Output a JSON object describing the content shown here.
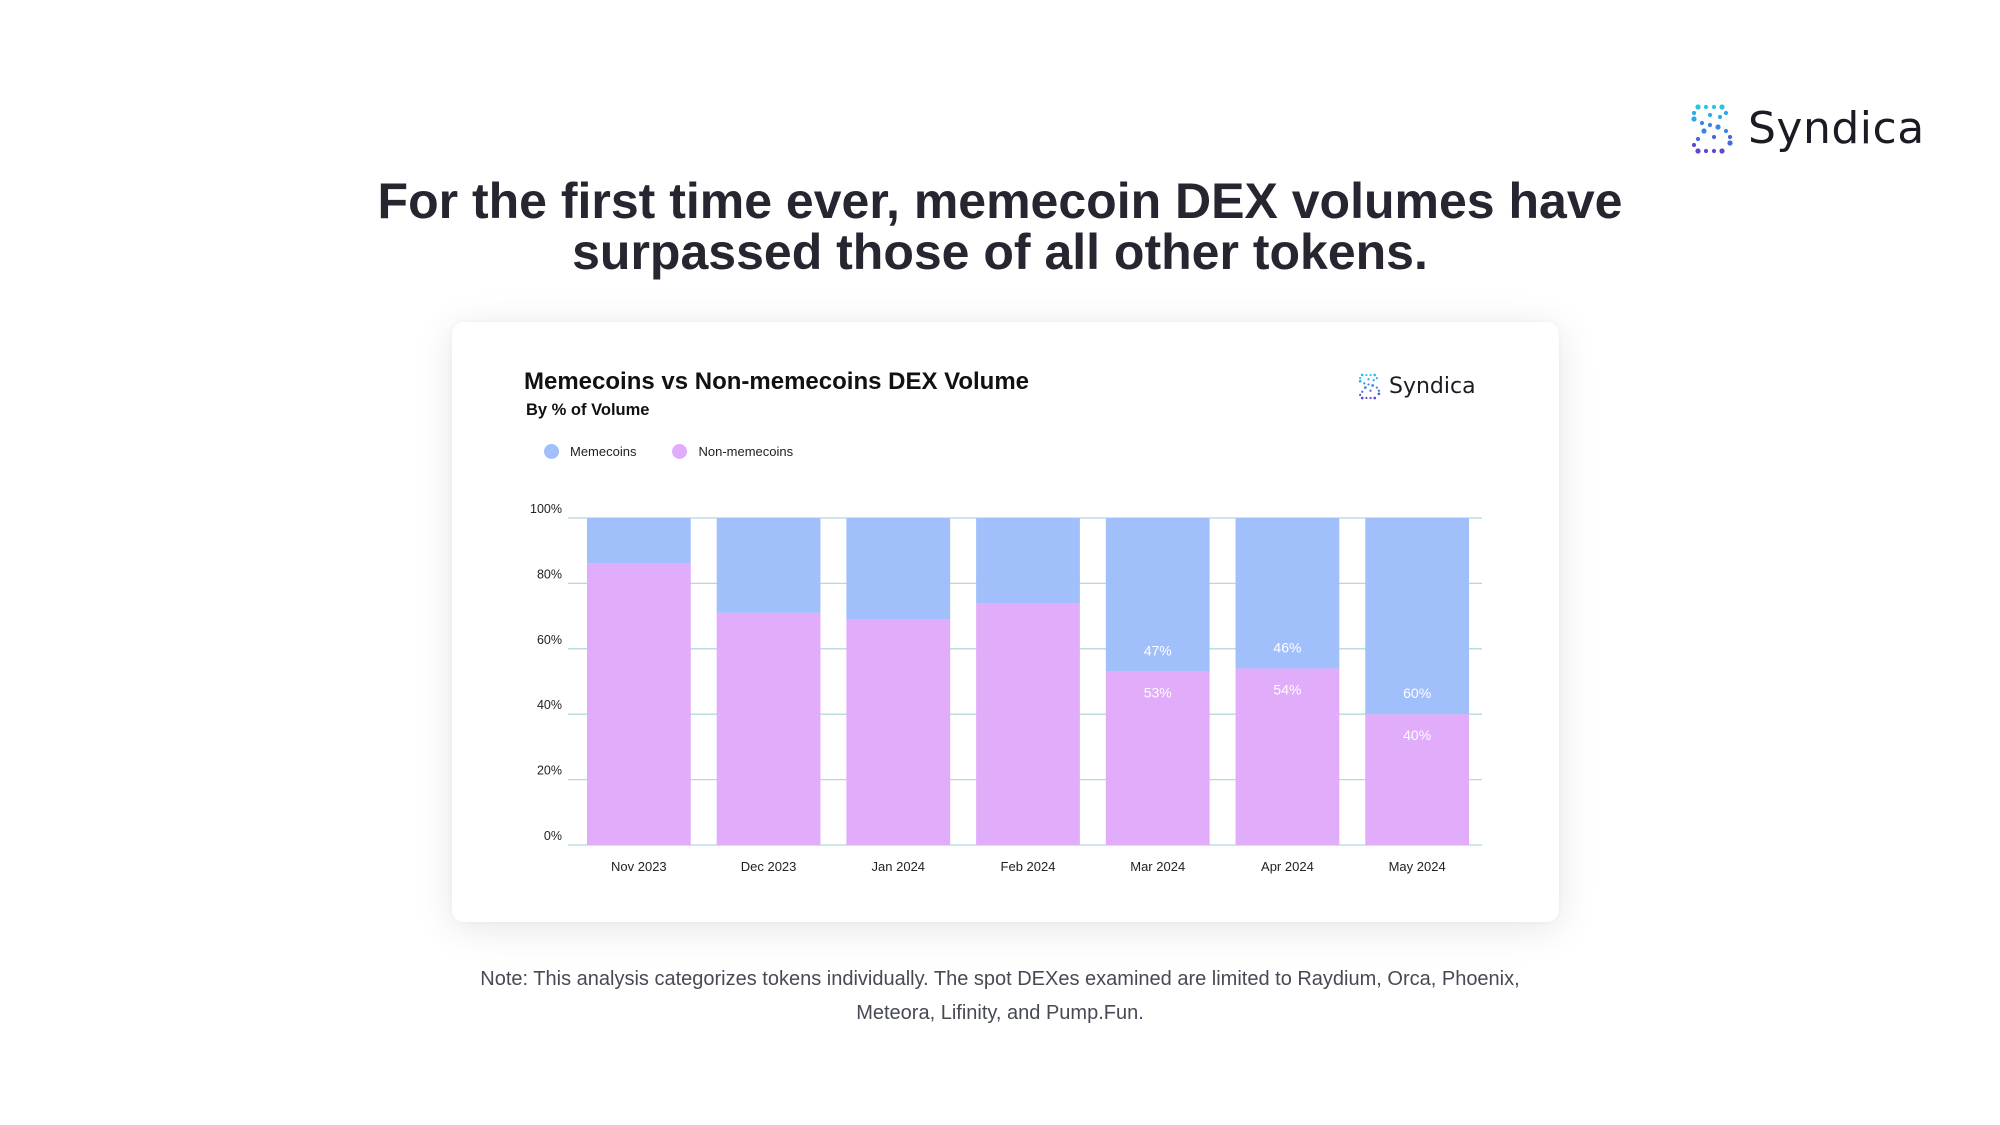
{
  "brand": {
    "name": "Syndica",
    "logo_icon": "syndica-logo-icon"
  },
  "headline": {
    "line1": "For the first time ever, memecoin DEX volumes have",
    "line2": "surpassed those of all other tokens."
  },
  "note": {
    "line1": "Note: This analysis categorizes tokens individually. The spot DEXes examined are limited to Raydium, Orca, Phoenix,",
    "line2": "Meteora, Lifinity, and Pump.Fun."
  },
  "colors": {
    "memecoins": "#a1bffb",
    "non_memecoins": "#e1acfa",
    "grid": "#b5d8e0"
  },
  "chart_data": {
    "type": "bar",
    "stacked": true,
    "title": "Memecoins vs Non-memecoins DEX Volume",
    "subtitle": "By % of Volume",
    "xlabel": "",
    "ylabel": "",
    "ylim": [
      0,
      100
    ],
    "y_ticks": [
      "0%",
      "20%",
      "40%",
      "60%",
      "80%",
      "100%"
    ],
    "legend_position": "top-left",
    "grid": true,
    "categories": [
      "Nov 2023",
      "Dec 2023",
      "Jan 2024",
      "Feb 2024",
      "Mar 2024",
      "Apr 2024",
      "May 2024"
    ],
    "series": [
      {
        "name": "Non-memecoins",
        "values": [
          86,
          71,
          69,
          74,
          53,
          54,
          40
        ],
        "labels": [
          "",
          "",
          "",
          "",
          "53%",
          "54%",
          "40%"
        ]
      },
      {
        "name": "Memecoins",
        "values": [
          14,
          29,
          31,
          26,
          47,
          46,
          60
        ],
        "labels": [
          "",
          "",
          "",
          "",
          "47%",
          "46%",
          "60%"
        ]
      }
    ]
  }
}
